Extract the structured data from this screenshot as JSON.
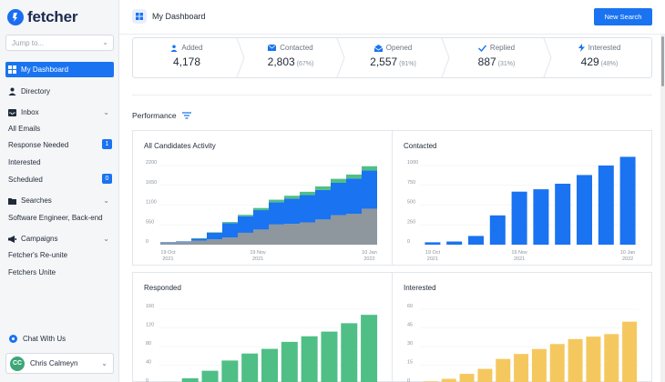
{
  "app": {
    "name": "fetcher"
  },
  "sidebar": {
    "search_placeholder": "Jump to...",
    "items": {
      "dashboard": "My Dashboard",
      "directory": "Directory",
      "inbox": "Inbox",
      "searches": "Searches",
      "campaigns": "Campaigns"
    },
    "inbox_items": [
      {
        "label": "All Emails"
      },
      {
        "label": "Response Needed",
        "badge": "1"
      },
      {
        "label": "Interested"
      },
      {
        "label": "Scheduled",
        "badge": "0"
      }
    ],
    "search_items": [
      {
        "label": "Software Engineer, Back-end"
      }
    ],
    "campaign_items": [
      {
        "label": "Fetcher's Re-unite"
      },
      {
        "label": "Fetchers Unite"
      }
    ],
    "chat_label": "Chat With Us",
    "user": {
      "initials": "CC",
      "name": "Chris Calmeyn"
    }
  },
  "header": {
    "title": "My Dashboard",
    "new_search_label": "New Search"
  },
  "stats": [
    {
      "label": "Added",
      "value": "4,178",
      "pct": ""
    },
    {
      "label": "Contacted",
      "value": "2,803",
      "pct": "(67%)"
    },
    {
      "label": "Opened",
      "value": "2,557",
      "pct": "(91%)"
    },
    {
      "label": "Replied",
      "value": "887",
      "pct": "(31%)"
    },
    {
      "label": "Interested",
      "value": "429",
      "pct": "(48%)"
    }
  ],
  "performance_label": "Performance",
  "colors": {
    "accent": "#1a73f0",
    "gray": "#8e969e",
    "green": "#4fbf86",
    "yellow": "#f5c85f"
  },
  "chart_data": [
    {
      "type": "bar",
      "title": "All Candidates Activity",
      "yticks": [
        "2200",
        "1650",
        "1100",
        "550",
        "0"
      ],
      "ylim": [
        0,
        2200
      ],
      "xtick_labels": [
        "19 Oct\n2021",
        "19 Nov\n2021",
        "10 Jan\n2022"
      ],
      "series": [
        {
          "color": "gray",
          "values": [
            60,
            70,
            110,
            150,
            200,
            330,
            420,
            560,
            580,
            620,
            700,
            820,
            860,
            1000
          ]
        },
        {
          "color": "blue",
          "values": [
            10,
            20,
            60,
            180,
            400,
            460,
            540,
            620,
            700,
            760,
            820,
            900,
            980,
            1060
          ]
        },
        {
          "color": "green",
          "values": [
            0,
            0,
            10,
            15,
            30,
            40,
            60,
            70,
            80,
            90,
            100,
            110,
            110,
            120
          ]
        }
      ]
    },
    {
      "type": "bar",
      "title": "Contacted",
      "yticks": [
        "1000",
        "750",
        "500",
        "250",
        "0"
      ],
      "ylim": [
        0,
        1000
      ],
      "xtick_labels": [
        "19 Oct\n2021",
        "19 Nov\n2021",
        "10 Jan\n2022"
      ],
      "values": [
        30,
        40,
        110,
        370,
        670,
        700,
        770,
        880,
        1000,
        1110
      ]
    },
    {
      "type": "bar",
      "title": "Responded",
      "yticks": [
        "160",
        "120",
        "80",
        "40",
        "0"
      ],
      "ylim": [
        0,
        160
      ],
      "values": [
        4,
        12,
        28,
        50,
        65,
        75,
        90,
        102,
        112,
        130,
        148
      ]
    },
    {
      "type": "bar",
      "title": "Interested",
      "yticks": [
        "60",
        "45",
        "30",
        "15",
        "0"
      ],
      "ylim": [
        0,
        60
      ],
      "values": [
        2,
        4,
        8,
        12,
        20,
        24,
        28,
        32,
        36,
        38,
        40,
        50
      ]
    }
  ]
}
